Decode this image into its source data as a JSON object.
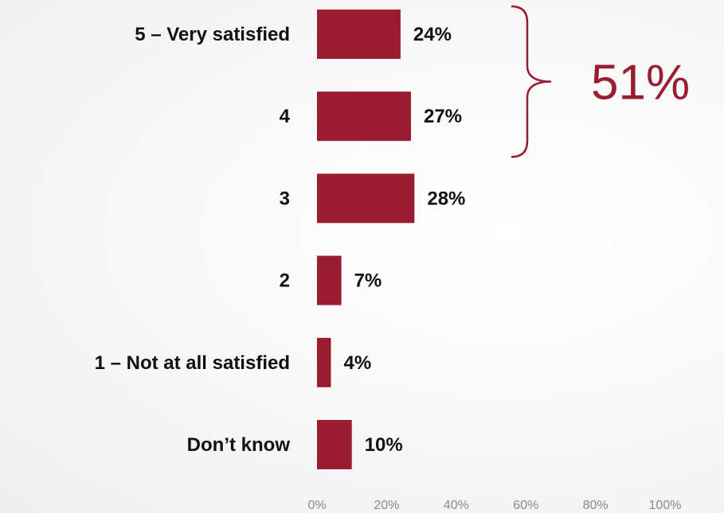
{
  "colors": {
    "bar": "#9b1b30",
    "callout": "#9b1b30",
    "bracket": "#9b1b30"
  },
  "chart_data": {
    "type": "bar",
    "orientation": "horizontal",
    "categories": [
      "5 – Very satisfied",
      "4",
      "3",
      "2",
      "1 – Not at all satisfied",
      "Don’t know"
    ],
    "values": [
      24,
      27,
      28,
      7,
      4,
      10
    ],
    "value_labels": [
      "24%",
      "27%",
      "28%",
      "7%",
      "4%",
      "10%"
    ],
    "xlim": [
      0,
      100
    ],
    "xticks": [
      0,
      20,
      40,
      60,
      80,
      100
    ],
    "xtick_labels": [
      "0%",
      "20%",
      "40%",
      "60%",
      "80%",
      "100%"
    ],
    "grid": false,
    "title": "",
    "xlabel": "",
    "ylabel": "",
    "annotation": {
      "text": "51%",
      "groups_categories": [
        "5 – Very satisfied",
        "4"
      ]
    }
  }
}
